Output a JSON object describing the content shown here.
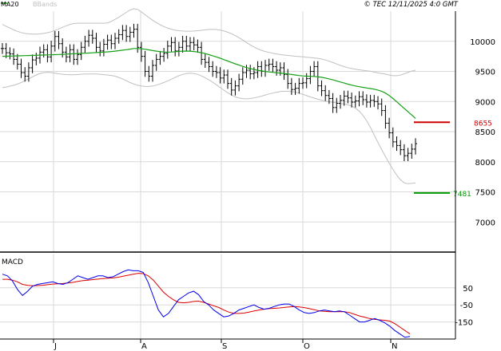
{
  "header": {
    "legend_ma": "MA20",
    "legend_bbands": "BBands",
    "copyright": "© TEC 12/11/2025 4:0 GMT"
  },
  "colors": {
    "background": "#ffffff",
    "grid": "#d9d9d9",
    "axis": "#000000",
    "price_bars": "#000000",
    "ma20": "#17a017",
    "bbands": "#c0c0c0",
    "macd_line": "#0000ee",
    "signal_line": "#dd0000",
    "resistance": "#cc0000",
    "support": "#009900"
  },
  "chart_data": [
    {
      "type": "ohlc",
      "title": "",
      "series_labels": [
        "MA20",
        "BBands"
      ],
      "x_tick_labels": [
        "J",
        "A",
        "S",
        "O",
        "N"
      ],
      "x_tick_months": [
        "2025-07",
        "2025-08",
        "2025-09",
        "2025-10",
        "2025-11"
      ],
      "ylim": [
        6500,
        10500
      ],
      "y_ticks": [
        7000,
        7500,
        8000,
        8500,
        9000,
        9500,
        10000
      ],
      "y_tick_labels": [
        "7000",
        "7500",
        "8000",
        "8500",
        "9000",
        "9500",
        "10000"
      ],
      "grid": true,
      "closes": [
        9880,
        9810,
        9790,
        9700,
        9620,
        9480,
        9420,
        9560,
        9690,
        9720,
        9820,
        9860,
        9740,
        9920,
        10080,
        9960,
        9820,
        9740,
        9860,
        9700,
        9780,
        9900,
        10000,
        10100,
        10050,
        9900,
        9840,
        9950,
        10020,
        9960,
        10050,
        10110,
        10180,
        10080,
        10150,
        10200,
        9900,
        9750,
        9500,
        9420,
        9600,
        9700,
        9750,
        9800,
        9920,
        9980,
        9840,
        9900,
        10000,
        9920,
        9980,
        9940,
        9900,
        9700,
        9650,
        9580,
        9500,
        9480,
        9390,
        9440,
        9300,
        9190,
        9260,
        9370,
        9480,
        9520,
        9460,
        9480,
        9580,
        9500,
        9600,
        9620,
        9580,
        9520,
        9560,
        9450,
        9300,
        9200,
        9220,
        9300,
        9310,
        9380,
        9500,
        9580,
        9260,
        9180,
        9100,
        9050,
        8900,
        8970,
        9020,
        9090,
        9060,
        8990,
        9010,
        9080,
        9030,
        8990,
        9020,
        9000,
        8960,
        8850,
        8640,
        8480,
        8330,
        8270,
        8200,
        8100,
        8140,
        8210,
        8300
      ],
      "ma20": [
        9750,
        9752,
        9754,
        9756,
        9758,
        9760,
        9762,
        9764,
        9766,
        9768,
        9770,
        9772,
        9774,
        9776,
        9778,
        9781,
        9784,
        9787,
        9790,
        9793,
        9796,
        9799,
        9802,
        9805,
        9808,
        9812,
        9816,
        9820,
        9824,
        9830,
        9836,
        9844,
        9852,
        9860,
        9870,
        9880,
        9880,
        9875,
        9868,
        9858,
        9846,
        9836,
        9828,
        9822,
        9820,
        9822,
        9826,
        9832,
        9836,
        9838,
        9836,
        9830,
        9822,
        9810,
        9795,
        9778,
        9760,
        9740,
        9718,
        9695,
        9672,
        9649,
        9626,
        9604,
        9583,
        9564,
        9547,
        9532,
        9519,
        9508,
        9499,
        9491,
        9484,
        9478,
        9472,
        9466,
        9458,
        9449,
        9440,
        9431,
        9424,
        9420,
        9418,
        9416,
        9410,
        9402,
        9390,
        9376,
        9360,
        9342,
        9324,
        9306,
        9288,
        9272,
        9258,
        9246,
        9235,
        9225,
        9215,
        9204,
        9190,
        9170,
        9140,
        9100,
        9050,
        8995,
        8940,
        8885,
        8830,
        8775,
        8720
      ],
      "bb_upper": [
        10280,
        10250,
        10220,
        10190,
        10165,
        10145,
        10130,
        10122,
        10118,
        10118,
        10122,
        10130,
        10142,
        10158,
        10180,
        10205,
        10232,
        10258,
        10280,
        10295,
        10300,
        10300,
        10300,
        10300,
        10300,
        10300,
        10300,
        10300,
        10305,
        10330,
        10365,
        10400,
        10440,
        10480,
        10520,
        10540,
        10530,
        10490,
        10440,
        10395,
        10350,
        10310,
        10275,
        10245,
        10220,
        10200,
        10185,
        10175,
        10170,
        10168,
        10168,
        10170,
        10175,
        10182,
        10190,
        10196,
        10198,
        10195,
        10185,
        10170,
        10150,
        10125,
        10095,
        10060,
        10020,
        9980,
        9940,
        9905,
        9875,
        9850,
        9830,
        9815,
        9800,
        9790,
        9780,
        9772,
        9765,
        9758,
        9752,
        9746,
        9741,
        9736,
        9730,
        9724,
        9717,
        9705,
        9690,
        9670,
        9647,
        9623,
        9600,
        9580,
        9562,
        9548,
        9536,
        9526,
        9518,
        9510,
        9502,
        9490,
        9475,
        9465,
        9455,
        9440,
        9428,
        9428,
        9438,
        9460,
        9485,
        9505,
        9520
      ],
      "bb_lower": [
        9230,
        9240,
        9255,
        9270,
        9290,
        9315,
        9345,
        9375,
        9410,
        9440,
        9465,
        9480,
        9485,
        9480,
        9470,
        9460,
        9452,
        9447,
        9445,
        9445,
        9448,
        9452,
        9456,
        9458,
        9458,
        9456,
        9452,
        9446,
        9440,
        9432,
        9420,
        9400,
        9375,
        9345,
        9315,
        9290,
        9270,
        9257,
        9250,
        9250,
        9258,
        9272,
        9292,
        9316,
        9342,
        9370,
        9400,
        9428,
        9450,
        9465,
        9470,
        9465,
        9450,
        9425,
        9395,
        9360,
        9320,
        9278,
        9232,
        9188,
        9145,
        9108,
        9078,
        9058,
        9048,
        9045,
        9050,
        9060,
        9074,
        9090,
        9108,
        9125,
        9140,
        9154,
        9165,
        9170,
        9170,
        9165,
        9155,
        9140,
        9120,
        9098,
        9076,
        9056,
        9038,
        9022,
        9008,
        8996,
        8986,
        8977,
        8968,
        8958,
        8945,
        8925,
        8890,
        8840,
        8770,
        8680,
        8570,
        8445,
        8320,
        8200,
        8085,
        7975,
        7872,
        7780,
        7700,
        7650,
        7635,
        7640,
        7650
      ],
      "resistance": {
        "value": 8655,
        "label": "8655"
      },
      "support": {
        "value": 7481,
        "label": "7481"
      }
    },
    {
      "type": "line",
      "title": "MACD",
      "ylim": [
        -250,
        250
      ],
      "y_ticks": [
        50,
        -50,
        -150
      ],
      "y_tick_labels": [
        "50",
        "-50",
        "-150"
      ],
      "macd": [
        130,
        120,
        90,
        40,
        5,
        30,
        60,
        70,
        75,
        80,
        85,
        75,
        70,
        80,
        100,
        120,
        110,
        100,
        110,
        120,
        120,
        110,
        115,
        130,
        145,
        155,
        150,
        150,
        140,
        80,
        0,
        -80,
        -120,
        -100,
        -60,
        -20,
        0,
        20,
        30,
        10,
        -30,
        -50,
        -80,
        -100,
        -120,
        -115,
        -100,
        -80,
        -70,
        -60,
        -50,
        -65,
        -75,
        -70,
        -60,
        -50,
        -45,
        -45,
        -60,
        -80,
        -95,
        -100,
        -95,
        -85,
        -80,
        -85,
        -90,
        -85,
        -90,
        -110,
        -130,
        -150,
        -150,
        -140,
        -130,
        -140,
        -155,
        -175,
        -200,
        -220,
        -240,
        -235
      ],
      "signal": [
        100,
        100,
        95,
        85,
        70,
        65,
        62,
        63,
        65,
        68,
        72,
        74,
        75,
        78,
        82,
        88,
        92,
        95,
        98,
        101,
        104,
        106,
        108,
        112,
        118,
        124,
        130,
        135,
        133,
        120,
        95,
        60,
        25,
        0,
        -20,
        -35,
        -38,
        -35,
        -30,
        -28,
        -35,
        -45,
        -55,
        -65,
        -80,
        -92,
        -100,
        -100,
        -98,
        -92,
        -86,
        -80,
        -75,
        -72,
        -70,
        -68,
        -65,
        -62,
        -60,
        -62,
        -66,
        -72,
        -78,
        -85,
        -88,
        -90,
        -90,
        -90,
        -90,
        -95,
        -105,
        -115,
        -122,
        -130,
        -135,
        -138,
        -140,
        -145,
        -160,
        -180,
        -200,
        -220
      ],
      "x_tick_labels": [
        "J",
        "A",
        "S",
        "O",
        "N"
      ]
    }
  ]
}
